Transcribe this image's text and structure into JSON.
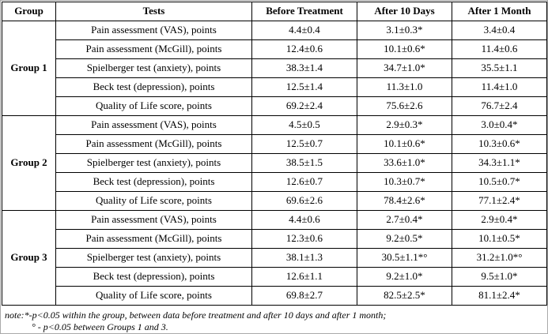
{
  "table": {
    "headers": [
      "Group",
      "Tests",
      "Before Treatment",
      "After 10 Days",
      "After 1 Month"
    ],
    "groups": [
      {
        "name": "Group 1",
        "rows": [
          {
            "test": "Pain assessment (VAS), points",
            "values": [
              "4.4±0.4",
              "3.1±0.3*",
              "3.4±0.4"
            ]
          },
          {
            "test": "Pain assessment (McGill), points",
            "values": [
              "12.4±0.6",
              "10.1±0.6*",
              "11.4±0.6"
            ]
          },
          {
            "test": "Spielberger test (anxiety), points",
            "values": [
              "38.3±1.4",
              "34.7±1.0*",
              "35.5±1.1"
            ]
          },
          {
            "test": "Beck test (depression), points",
            "values": [
              "12.5±1.4",
              "11.3±1.0",
              "11.4±1.0"
            ]
          },
          {
            "test": "Quality of Life score, points",
            "values": [
              "69.2±2.4",
              "75.6±2.6",
              "76.7±2.4"
            ]
          }
        ]
      },
      {
        "name": "Group 2",
        "rows": [
          {
            "test": "Pain assessment (VAS), points",
            "values": [
              "4.5±0.5",
              "2.9±0.3*",
              "3.0±0.4*"
            ]
          },
          {
            "test": "Pain assessment (McGill), points",
            "values": [
              "12.5±0.7",
              "10.1±0.6*",
              "10.3±0.6*"
            ]
          },
          {
            "test": "Spielberger test (anxiety), points",
            "values": [
              "38.5±1.5",
              "33.6±1.0*",
              "34.3±1.1*"
            ]
          },
          {
            "test": "Beck test (depression), points",
            "values": [
              "12.6±0.7",
              "10.3±0.7*",
              "10.5±0.7*"
            ]
          },
          {
            "test": "Quality of Life score, points",
            "values": [
              "69.6±2.6",
              "78.4±2.6*",
              "77.1±2.4*"
            ]
          }
        ]
      },
      {
        "name": "Group 3",
        "rows": [
          {
            "test": "Pain assessment (VAS), points",
            "values": [
              "4.4±0.6",
              "2.7±0.4*",
              "2.9±0.4*"
            ]
          },
          {
            "test": "Pain assessment (McGill), points",
            "values": [
              "12.3±0.6",
              "9.2±0.5*",
              "10.1±0.5*"
            ]
          },
          {
            "test": "Spielberger test (anxiety), points",
            "values": [
              "38.1±1.3",
              "30.5±1.1*°",
              "31.2±1.0*°"
            ]
          },
          {
            "test": "Beck test (depression), points",
            "values": [
              "12.6±1.1",
              "9.2±1.0*",
              "9.5±1.0*"
            ]
          },
          {
            "test": "Quality of Life score, points",
            "values": [
              "69.8±2.7",
              "82.5±2.5*",
              "81.1±2.4*"
            ]
          }
        ]
      }
    ]
  },
  "notes": {
    "line1": "note:*-p<0.05 within the group, between data before treatment and after 10 days and after 1 month;",
    "line2": "° - p<0.05 between Groups 1 and 3."
  }
}
